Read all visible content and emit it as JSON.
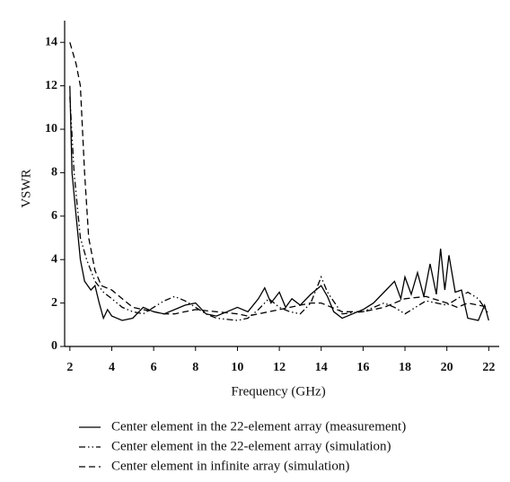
{
  "chart_data": {
    "type": "line",
    "xlabel": "Frequency (GHz)",
    "ylabel": "VSWR",
    "xlim": [
      1.75,
      22.5
    ],
    "ylim": [
      0,
      15
    ],
    "xticks": [
      2,
      4,
      6,
      8,
      10,
      12,
      14,
      16,
      18,
      20,
      22
    ],
    "yticks": [
      0,
      2,
      4,
      6,
      8,
      10,
      12,
      14
    ],
    "legend": "bottom",
    "series": [
      {
        "name": "Center element in the 22-element array (measurement)",
        "color": "#000000",
        "style": "solid",
        "x": [
          2,
          2.1,
          2.3,
          2.5,
          2.7,
          3,
          3.2,
          3.4,
          3.6,
          3.8,
          4,
          4.5,
          5,
          5.5,
          6,
          6.5,
          7,
          7.5,
          8,
          8.5,
          9,
          9.5,
          10,
          10.5,
          11,
          11.3,
          11.6,
          12,
          12.3,
          12.6,
          13,
          13.5,
          14,
          14.3,
          14.6,
          15,
          15.5,
          16,
          16.5,
          17,
          17.5,
          17.8,
          18,
          18.3,
          18.6,
          18.9,
          19.2,
          19.5,
          19.7,
          19.9,
          20.1,
          20.4,
          20.7,
          21,
          21.5,
          21.8,
          22
        ],
        "values": [
          12,
          8,
          6,
          4,
          3,
          2.6,
          2.8,
          2,
          1.3,
          1.7,
          1.4,
          1.2,
          1.3,
          1.8,
          1.6,
          1.5,
          1.7,
          1.9,
          2.0,
          1.5,
          1.4,
          1.6,
          1.8,
          1.6,
          2.2,
          2.7,
          2.0,
          2.5,
          1.8,
          2.2,
          1.9,
          2.4,
          2.8,
          2.3,
          1.6,
          1.3,
          1.5,
          1.7,
          2.0,
          2.5,
          3.0,
          2.2,
          3.2,
          2.4,
          3.4,
          2.3,
          3.8,
          2.4,
          4.5,
          2.6,
          4.2,
          2.5,
          2.6,
          1.3,
          1.2,
          1.9,
          1.2
        ]
      },
      {
        "name": "Center element in the 22-element array (simulation)",
        "color": "#000000",
        "style": "dashdot",
        "x": [
          2,
          2.2,
          2.5,
          2.8,
          3.2,
          3.6,
          4,
          4.5,
          5,
          5.5,
          6,
          6.5,
          7,
          7.5,
          8,
          8.5,
          9,
          10,
          10.5,
          11,
          11.5,
          12,
          12.5,
          13,
          13.5,
          14,
          14.3,
          15,
          16,
          17,
          17.5,
          18,
          18.5,
          19,
          20,
          21,
          21.5,
          22
        ],
        "values": [
          11.5,
          8,
          5,
          4,
          3,
          2.5,
          2.2,
          1.8,
          1.6,
          1.5,
          1.8,
          2.1,
          2.3,
          2.1,
          1.8,
          1.5,
          1.3,
          1.2,
          1.3,
          1.7,
          2.2,
          1.8,
          1.6,
          1.5,
          2.0,
          3.2,
          2.5,
          1.5,
          1.6,
          2.0,
          1.8,
          1.5,
          1.8,
          2.1,
          1.9,
          2.5,
          2.2,
          1.5
        ]
      },
      {
        "name": "Center element in infinite array (simulation)",
        "color": "#000000",
        "style": "dashed",
        "x": [
          2,
          2.3,
          2.5,
          2.7,
          2.9,
          3.2,
          3.5,
          4,
          4.5,
          5,
          5.5,
          6,
          6.5,
          7,
          7.5,
          8,
          9,
          10,
          10.5,
          11,
          12,
          13,
          13.5,
          14,
          14.5,
          15,
          16,
          17,
          18,
          19,
          20,
          20.5,
          21,
          22
        ],
        "values": [
          14,
          13,
          12,
          8,
          5,
          3.5,
          2.8,
          2.6,
          2.2,
          1.8,
          1.7,
          1.6,
          1.5,
          1.5,
          1.6,
          1.7,
          1.6,
          1.5,
          1.4,
          1.5,
          1.7,
          1.9,
          2.0,
          2.0,
          1.8,
          1.6,
          1.6,
          1.8,
          2.2,
          2.3,
          2.0,
          1.8,
          2.0,
          1.8
        ]
      }
    ]
  }
}
